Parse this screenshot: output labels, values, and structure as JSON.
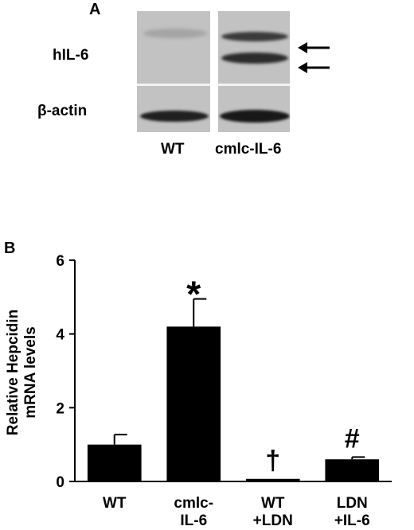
{
  "panel_a": {
    "letter": "A",
    "row_labels": [
      "hIL-6",
      "β-actin"
    ],
    "lane_labels": [
      "WT",
      "cmlc-IL-6"
    ]
  },
  "panel_b": {
    "letter": "B"
  },
  "chart_data": {
    "type": "bar",
    "ylabel_line1": "Relative Hepcidin",
    "ylabel_line2": "mRNA levels",
    "ylim": [
      0,
      6
    ],
    "yticks": [
      "0",
      "2",
      "4",
      "6"
    ],
    "grid": false,
    "categories": [
      {
        "line1": "WT",
        "line2": ""
      },
      {
        "line1": "cmlc-",
        "line2": "IL-6"
      },
      {
        "line1": "WT",
        "line2": "+LDN"
      },
      {
        "line1": "LDN",
        "line2": "+IL-6"
      }
    ],
    "values": [
      1.0,
      4.2,
      0.07,
      0.6
    ],
    "errors": [
      0.27,
      0.75,
      0.0,
      0.06
    ],
    "annotations": [
      "",
      "*",
      "†",
      "#"
    ]
  }
}
